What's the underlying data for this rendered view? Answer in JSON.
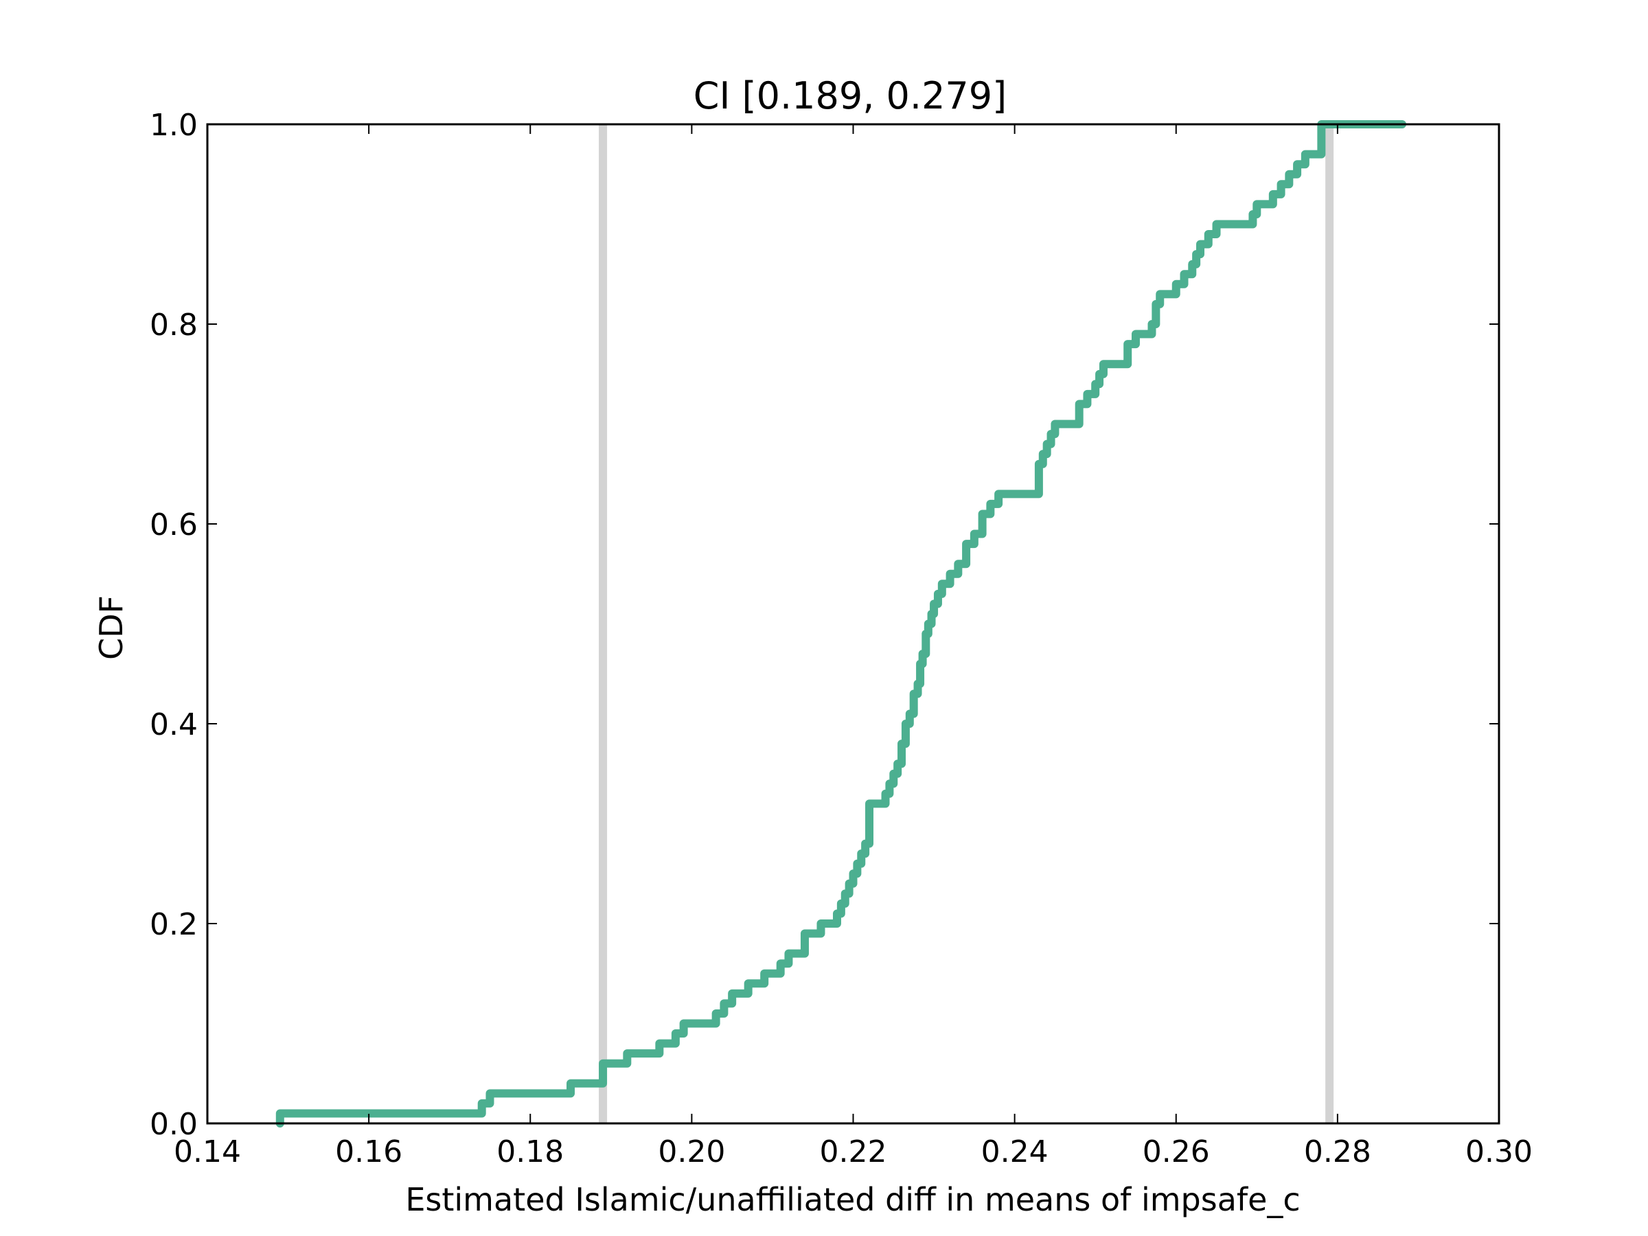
{
  "chart_data": {
    "type": "line",
    "step": true,
    "title": "CI [0.189, 0.279]",
    "xlabel": "Estimated Islamic/unaffiliated diff in means of impsafe_c",
    "ylabel": "CDF",
    "xlim": [
      0.14,
      0.3
    ],
    "ylim": [
      0.0,
      1.0
    ],
    "xticks": [
      0.14,
      0.16,
      0.18,
      0.2,
      0.22,
      0.24,
      0.26,
      0.28,
      0.3
    ],
    "xtick_labels": [
      "0.14",
      "0.16",
      "0.18",
      "0.20",
      "0.22",
      "0.24",
      "0.26",
      "0.28",
      "0.30"
    ],
    "yticks": [
      0.0,
      0.2,
      0.4,
      0.6,
      0.8,
      1.0
    ],
    "ytick_labels": [
      "0.0",
      "0.2",
      "0.4",
      "0.6",
      "0.8",
      "1.0"
    ],
    "grid": false,
    "ci": [
      0.189,
      0.279
    ],
    "ci_color": "#d3d3d3",
    "series": [
      {
        "color": "#4caf90",
        "x": [
          0.149,
          0.174,
          0.175,
          0.185,
          0.189,
          0.192,
          0.196,
          0.198,
          0.199,
          0.203,
          0.204,
          0.205,
          0.207,
          0.209,
          0.211,
          0.212,
          0.214,
          0.216,
          0.218,
          0.2185,
          0.219,
          0.2195,
          0.22,
          0.2205,
          0.221,
          0.2215,
          0.222,
          0.224,
          0.2245,
          0.225,
          0.2255,
          0.226,
          0.2265,
          0.227,
          0.2275,
          0.228,
          0.2283,
          0.2286,
          0.229,
          0.2293,
          0.2297,
          0.23,
          0.2305,
          0.231,
          0.232,
          0.233,
          0.234,
          0.235,
          0.236,
          0.237,
          0.238,
          0.243,
          0.2435,
          0.244,
          0.2445,
          0.245,
          0.248,
          0.249,
          0.25,
          0.2505,
          0.251,
          0.254,
          0.255,
          0.257,
          0.2575,
          0.258,
          0.26,
          0.261,
          0.262,
          0.2625,
          0.263,
          0.264,
          0.265,
          0.2695,
          0.27,
          0.272,
          0.273,
          0.274,
          0.275,
          0.276,
          0.278,
          0.28,
          0.283,
          0.288
        ],
        "y": [
          0.01,
          0.02,
          0.03,
          0.04,
          0.06,
          0.07,
          0.08,
          0.09,
          0.1,
          0.11,
          0.12,
          0.13,
          0.14,
          0.15,
          0.16,
          0.17,
          0.19,
          0.2,
          0.21,
          0.22,
          0.23,
          0.24,
          0.25,
          0.26,
          0.27,
          0.28,
          0.32,
          0.33,
          0.34,
          0.35,
          0.36,
          0.38,
          0.4,
          0.41,
          0.43,
          0.44,
          0.46,
          0.47,
          0.49,
          0.5,
          0.51,
          0.52,
          0.53,
          0.54,
          0.55,
          0.56,
          0.58,
          0.59,
          0.61,
          0.62,
          0.63,
          0.66,
          0.67,
          0.68,
          0.69,
          0.7,
          0.72,
          0.73,
          0.74,
          0.75,
          0.76,
          0.78,
          0.79,
          0.8,
          0.82,
          0.83,
          0.84,
          0.85,
          0.86,
          0.87,
          0.88,
          0.89,
          0.9,
          0.91,
          0.92,
          0.93,
          0.94,
          0.95,
          0.96,
          0.97,
          1.0,
          1.0,
          1.0,
          1.0
        ]
      }
    ]
  }
}
